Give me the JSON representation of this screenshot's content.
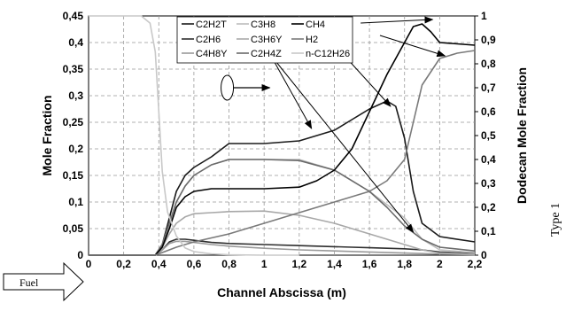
{
  "chart_data": {
    "type": "line",
    "xlabel": "Channel Abscissa (m)",
    "ylabel": "Mole Fraction",
    "y2label": "Dodecan Mole Fraction",
    "xlim": [
      0,
      2.2
    ],
    "ylim": [
      0,
      0.45
    ],
    "y2lim": [
      0,
      1
    ],
    "x_ticks": [
      "0",
      "0,2",
      "0,4",
      "0,6",
      "0,8",
      "1",
      "1,2",
      "1,4",
      "1,6",
      "1,8",
      "2",
      "2,2"
    ],
    "y_ticks": [
      "0",
      "0,05",
      "0,1",
      "0,15",
      "0,2",
      "0,25",
      "0,3",
      "0,35",
      "0,4",
      "0,45"
    ],
    "y2_ticks": [
      "0",
      "0,1",
      "0,2",
      "0,3",
      "0,4",
      "0,5",
      "0,6",
      "0,7",
      "0,8",
      "0,9",
      "1"
    ],
    "grid": true,
    "legend_position": "top-center",
    "side_label": "Type 1",
    "flow_label": "Fuel",
    "series": [
      {
        "name": "C2H2T",
        "axis": "left",
        "color": "#1a1a1a",
        "x": [
          0,
          0.38,
          0.42,
          0.46,
          0.5,
          0.55,
          0.6,
          0.7,
          0.8,
          1.0,
          1.2,
          1.4,
          1.5,
          1.6,
          1.7,
          1.75,
          1.8,
          1.85,
          1.9,
          2.0,
          2.2
        ],
        "y": [
          0,
          0,
          0.02,
          0.07,
          0.12,
          0.15,
          0.165,
          0.185,
          0.21,
          0.21,
          0.215,
          0.235,
          0.255,
          0.275,
          0.29,
          0.28,
          0.22,
          0.12,
          0.06,
          0.035,
          0.025
        ]
      },
      {
        "name": "C2H6",
        "axis": "left",
        "color": "#2e2e2e",
        "x": [
          0,
          0.38,
          0.42,
          0.46,
          0.5,
          0.55,
          0.6,
          0.7,
          0.8,
          1.0,
          1.2,
          1.4,
          1.5,
          1.6,
          1.7,
          1.8,
          1.9,
          2.0,
          2.2
        ],
        "y": [
          0,
          0,
          0.01,
          0.025,
          0.03,
          0.03,
          0.028,
          0.024,
          0.022,
          0.02,
          0.018,
          0.016,
          0.015,
          0.014,
          0.013,
          0.012,
          0.01,
          0.006,
          0.003
        ]
      },
      {
        "name": "C4H8Y",
        "axis": "left",
        "color": "#9a9a9a",
        "x": [
          0,
          0.38,
          0.42,
          0.46,
          0.5,
          0.55,
          0.6,
          0.7,
          0.8,
          1.0,
          1.2,
          1.4,
          1.6,
          1.8,
          2.0,
          2.2
        ],
        "y": [
          0,
          0,
          0.01,
          0.022,
          0.026,
          0.026,
          0.024,
          0.02,
          0.017,
          0.013,
          0.01,
          0.008,
          0.006,
          0.004,
          0.002,
          0.001
        ]
      },
      {
        "name": "C3H8",
        "axis": "left",
        "color": "#bdbdbd",
        "x": [
          0,
          0.38,
          0.42,
          0.46,
          0.5,
          0.55,
          0.6,
          0.7,
          0.8,
          1.0,
          1.2,
          1.4,
          1.6,
          1.8,
          1.9,
          2.0,
          2.2
        ],
        "y": [
          0,
          0,
          0.02,
          0.06,
          0.1,
          0.13,
          0.15,
          0.17,
          0.18,
          0.18,
          0.18,
          0.16,
          0.12,
          0.07,
          0.03,
          0.01,
          0.005
        ]
      },
      {
        "name": "C3H6Y",
        "axis": "left",
        "color": "#a8a8a8",
        "x": [
          0,
          0.38,
          0.42,
          0.46,
          0.5,
          0.55,
          0.6,
          0.7,
          0.8,
          1.0,
          1.2,
          1.4,
          1.6,
          1.8,
          1.9,
          2.0,
          2.2
        ],
        "y": [
          0,
          0,
          0.015,
          0.04,
          0.06,
          0.072,
          0.078,
          0.08,
          0.082,
          0.083,
          0.075,
          0.06,
          0.04,
          0.02,
          0.01,
          0.004,
          0.002
        ]
      },
      {
        "name": "C2H4Z",
        "axis": "left",
        "color": "#6a6a6a",
        "x": [
          0,
          0.38,
          0.42,
          0.46,
          0.5,
          0.55,
          0.6,
          0.7,
          0.8,
          1.0,
          1.2,
          1.4,
          1.6,
          1.7,
          1.8,
          1.9,
          2.0,
          2.2
        ],
        "y": [
          0,
          0,
          0.02,
          0.06,
          0.1,
          0.13,
          0.15,
          0.17,
          0.18,
          0.18,
          0.178,
          0.16,
          0.12,
          0.09,
          0.055,
          0.03,
          0.015,
          0.008
        ]
      },
      {
        "name": "CH4",
        "axis": "left",
        "color": "#000000",
        "x": [
          0,
          0.38,
          0.42,
          0.46,
          0.5,
          0.55,
          0.6,
          0.7,
          0.8,
          1.0,
          1.2,
          1.3,
          1.4,
          1.5,
          1.6,
          1.7,
          1.8,
          1.85,
          1.9,
          1.95,
          2.0,
          2.2
        ],
        "y": [
          0,
          0,
          0.015,
          0.05,
          0.09,
          0.11,
          0.12,
          0.125,
          0.125,
          0.125,
          0.128,
          0.14,
          0.16,
          0.2,
          0.27,
          0.34,
          0.4,
          0.43,
          0.435,
          0.42,
          0.4,
          0.395
        ]
      },
      {
        "name": "H2",
        "axis": "left",
        "color": "#7a7a7a",
        "x": [
          0,
          0.38,
          0.42,
          0.46,
          0.5,
          0.6,
          0.8,
          1.0,
          1.2,
          1.4,
          1.6,
          1.7,
          1.8,
          1.85,
          1.9,
          2.0,
          2.1,
          2.2
        ],
        "y": [
          0,
          0,
          0.005,
          0.01,
          0.015,
          0.025,
          0.04,
          0.06,
          0.08,
          0.1,
          0.12,
          0.14,
          0.18,
          0.25,
          0.32,
          0.37,
          0.38,
          0.385
        ]
      },
      {
        "name": "n-C12H26",
        "axis": "right",
        "color": "#c8c8c8",
        "x": [
          0,
          0.2,
          0.3,
          0.35,
          0.38,
          0.4,
          0.42,
          0.45,
          0.5,
          0.55,
          0.6,
          0.7,
          0.8,
          1.0,
          1.2
        ],
        "y": [
          1.0,
          1.0,
          1.0,
          0.97,
          0.85,
          0.6,
          0.35,
          0.18,
          0.08,
          0.03,
          0.015,
          0.005,
          0.002,
          0.0,
          0.0
        ]
      }
    ]
  }
}
